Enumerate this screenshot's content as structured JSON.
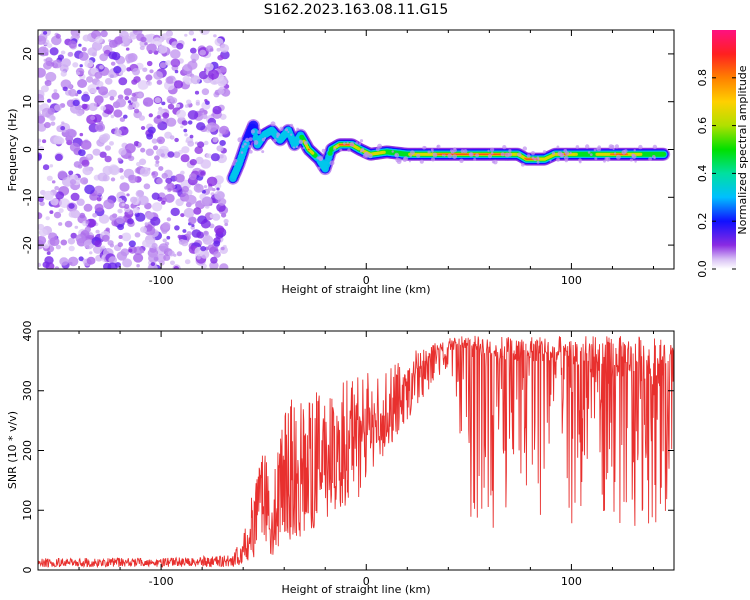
{
  "title": "S162.2023.163.08.11.G15",
  "chart_data": [
    {
      "type": "heatmap",
      "xlabel": "Height of straight line (km)",
      "ylabel": "Frequency (Hz)",
      "xlim": [
        -160,
        150
      ],
      "ylim": [
        -25,
        25
      ],
      "xticks": [
        -100,
        0,
        100
      ],
      "yticks": [
        -20,
        -10,
        0,
        10,
        20
      ],
      "colorbar": {
        "label": "Normalized spectral amplitude",
        "ticks": [
          0.0,
          0.2,
          0.4,
          0.6,
          0.8
        ],
        "range": [
          0,
          1
        ]
      },
      "noise_region_x": [
        -160,
        -68
      ],
      "ridge": [
        {
          "x": -65,
          "y": -6,
          "a": 0.35
        },
        {
          "x": -62,
          "y": -3,
          "a": 0.4
        },
        {
          "x": -58,
          "y": 2,
          "a": 0.3
        },
        {
          "x": -55,
          "y": 5,
          "a": 0.3
        },
        {
          "x": -53,
          "y": 1,
          "a": 0.35
        },
        {
          "x": -50,
          "y": 3,
          "a": 0.3
        },
        {
          "x": -46,
          "y": 4,
          "a": 0.45
        },
        {
          "x": -42,
          "y": 2,
          "a": 0.4
        },
        {
          "x": -38,
          "y": 4,
          "a": 0.45
        },
        {
          "x": -35,
          "y": 1,
          "a": 0.45
        },
        {
          "x": -32,
          "y": 3,
          "a": 0.45
        },
        {
          "x": -28,
          "y": 0,
          "a": 0.85
        },
        {
          "x": -23,
          "y": -2,
          "a": 0.3
        },
        {
          "x": -20,
          "y": -4,
          "a": 0.35
        },
        {
          "x": -17,
          "y": 0,
          "a": 0.5
        },
        {
          "x": -13,
          "y": 1,
          "a": 0.85
        },
        {
          "x": -7,
          "y": 1,
          "a": 0.85
        },
        {
          "x": -3,
          "y": 0,
          "a": 0.6
        },
        {
          "x": 2,
          "y": -1,
          "a": 0.8
        },
        {
          "x": 10,
          "y": -0.5,
          "a": 0.6
        },
        {
          "x": 20,
          "y": -1,
          "a": 0.6
        },
        {
          "x": 30,
          "y": -1,
          "a": 0.75
        },
        {
          "x": 40,
          "y": -1,
          "a": 0.9
        },
        {
          "x": 50,
          "y": -1,
          "a": 0.95
        },
        {
          "x": 60,
          "y": -1,
          "a": 0.95
        },
        {
          "x": 68,
          "y": -1,
          "a": 0.9
        },
        {
          "x": 74,
          "y": -1,
          "a": 0.6
        },
        {
          "x": 78,
          "y": -2,
          "a": 0.85
        },
        {
          "x": 83,
          "y": -2,
          "a": 0.85
        },
        {
          "x": 87,
          "y": -2,
          "a": 0.7
        },
        {
          "x": 92,
          "y": -1,
          "a": 0.7
        },
        {
          "x": 97,
          "y": -1,
          "a": 0.85
        },
        {
          "x": 103,
          "y": -1,
          "a": 0.6
        },
        {
          "x": 110,
          "y": -1,
          "a": 0.55
        },
        {
          "x": 118,
          "y": -1,
          "a": 0.8
        },
        {
          "x": 126,
          "y": -1,
          "a": 0.85
        },
        {
          "x": 135,
          "y": -1,
          "a": 0.6
        },
        {
          "x": 145,
          "y": -1,
          "a": 0.5
        }
      ]
    },
    {
      "type": "line",
      "xlabel": "Height of straight line (km)",
      "ylabel": "SNR (10 * v/v)",
      "xlim": [
        -160,
        150
      ],
      "ylim": [
        0,
        400
      ],
      "xticks": [
        -100,
        0,
        100
      ],
      "yticks": [
        0,
        100,
        200,
        300,
        400
      ],
      "series": [
        {
          "color": "#e8302e",
          "envelope_x": [
            -160,
            -100,
            -65,
            -60,
            -55,
            -50,
            -45,
            -40,
            -35,
            -30,
            -25,
            -20,
            -15,
            -10,
            -5,
            0,
            10,
            20,
            30,
            40,
            50,
            60,
            70,
            80,
            90,
            100,
            110,
            120,
            130,
            140,
            150
          ],
          "envelope_y": [
            12,
            12,
            15,
            30,
            70,
            100,
            80,
            120,
            130,
            130,
            150,
            180,
            160,
            190,
            200,
            220,
            250,
            300,
            350,
            375,
            370,
            350,
            350,
            350,
            340,
            330,
            330,
            320,
            320,
            310,
            300
          ],
          "upper_y": [
            20,
            20,
            25,
            60,
            140,
            200,
            160,
            260,
            300,
            280,
            300,
            330,
            300,
            320,
            330,
            330,
            340,
            360,
            380,
            390,
            392,
            392,
            392,
            392,
            392,
            392,
            392,
            392,
            392,
            392,
            380
          ],
          "lower_y": [
            5,
            5,
            5,
            10,
            20,
            40,
            20,
            40,
            50,
            60,
            70,
            80,
            90,
            100,
            110,
            150,
            200,
            250,
            300,
            340,
            80,
            60,
            90,
            80,
            90,
            70,
            100,
            70,
            60,
            80,
            70
          ]
        }
      ]
    }
  ]
}
